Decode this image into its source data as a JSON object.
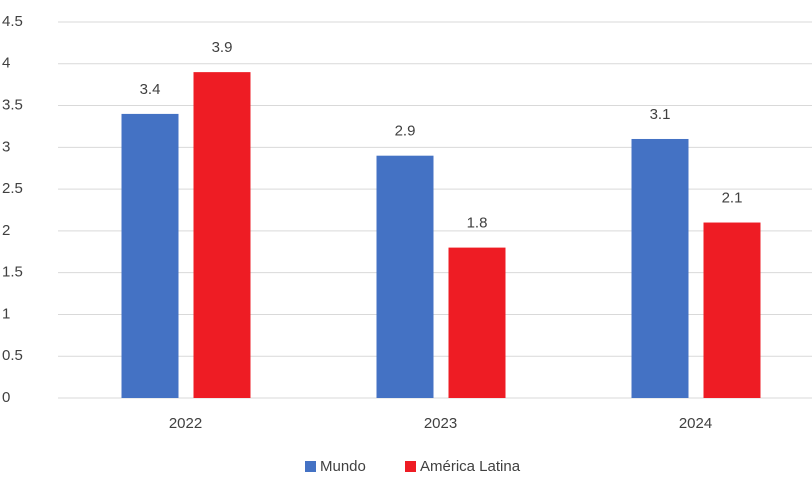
{
  "chart_data": {
    "type": "bar",
    "categories": [
      "2022",
      "2023",
      "2024"
    ],
    "series": [
      {
        "name": "Mundo",
        "color": "#4472c4",
        "values": [
          3.4,
          2.9,
          3.1
        ]
      },
      {
        "name": "América Latina",
        "color": "#ee1c24",
        "values": [
          3.9,
          1.8,
          2.1
        ]
      }
    ],
    "ylim": [
      0,
      4.5
    ],
    "yticks": [
      0,
      0.5,
      1,
      1.5,
      2,
      2.5,
      3,
      3.5,
      4,
      4.5
    ],
    "grid": true,
    "legend": "bottom"
  }
}
